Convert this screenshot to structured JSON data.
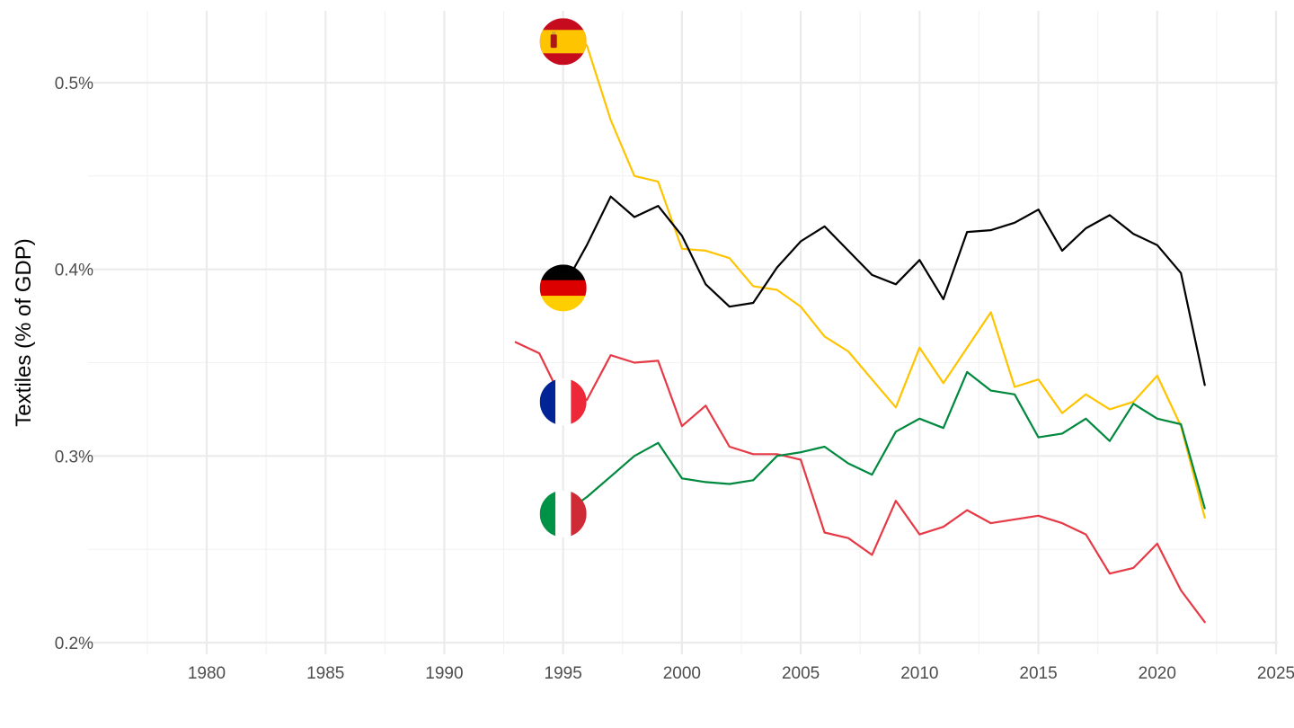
{
  "chart_data": {
    "type": "line",
    "title": "",
    "xlabel": "",
    "ylabel": "Textiles (% of GDP)",
    "xlim": [
      1975,
      2025
    ],
    "ylim": [
      0.2,
      0.53
    ],
    "x_ticks": [
      1980,
      1985,
      1990,
      1995,
      2000,
      2005,
      2010,
      2015,
      2020,
      2025
    ],
    "y_ticks": [
      0.2,
      0.3,
      0.4,
      0.5
    ],
    "y_tick_labels": [
      "0.2%",
      "0.3%",
      "0.4%",
      "0.5%"
    ],
    "grid": true,
    "legend": "flag markers at 1995",
    "series": [
      {
        "key": "spain",
        "flag": "spain-flag-icon",
        "color": "#FFC400",
        "x": [
          1995,
          1996,
          1997,
          1998,
          1999,
          2000,
          2001,
          2002,
          2003,
          2004,
          2005,
          2006,
          2007,
          2008,
          2009,
          2010,
          2011,
          2012,
          2013,
          2014,
          2015,
          2016,
          2017,
          2018,
          2019,
          2020,
          2021,
          2022
        ],
        "y": [
          0.522,
          0.52,
          0.48,
          0.45,
          0.447,
          0.411,
          0.41,
          0.406,
          0.391,
          0.389,
          0.38,
          0.364,
          0.356,
          0.341,
          0.326,
          0.358,
          0.339,
          0.358,
          0.377,
          0.337,
          0.341,
          0.323,
          0.333,
          0.325,
          0.329,
          0.343,
          0.316,
          0.267
        ]
      },
      {
        "key": "germany",
        "flag": "germany-flag-icon",
        "color": "#000000",
        "x": [
          1995,
          1996,
          1997,
          1998,
          1999,
          2000,
          2001,
          2002,
          2003,
          2004,
          2005,
          2006,
          2007,
          2008,
          2009,
          2010,
          2011,
          2012,
          2013,
          2014,
          2015,
          2016,
          2017,
          2018,
          2019,
          2020,
          2021,
          2022
        ],
        "y": [
          0.39,
          0.413,
          0.439,
          0.428,
          0.434,
          0.418,
          0.392,
          0.38,
          0.382,
          0.401,
          0.415,
          0.423,
          0.41,
          0.397,
          0.392,
          0.405,
          0.384,
          0.42,
          0.421,
          0.425,
          0.432,
          0.41,
          0.422,
          0.429,
          0.419,
          0.413,
          0.398,
          0.338
        ]
      },
      {
        "key": "france",
        "flag": "france-flag-icon",
        "color": "#E63946",
        "x": [
          1993,
          1994,
          1995,
          1996,
          1997,
          1998,
          1999,
          2000,
          2001,
          2002,
          2003,
          2004,
          2005,
          2006,
          2007,
          2008,
          2009,
          2010,
          2011,
          2012,
          2013,
          2014,
          2015,
          2016,
          2017,
          2018,
          2019,
          2020,
          2021,
          2022
        ],
        "y": [
          0.361,
          0.355,
          0.329,
          0.33,
          0.354,
          0.35,
          0.351,
          0.316,
          0.327,
          0.305,
          0.301,
          0.301,
          0.298,
          0.259,
          0.256,
          0.247,
          0.276,
          0.258,
          0.262,
          0.271,
          0.264,
          0.266,
          0.268,
          0.264,
          0.258,
          0.237,
          0.24,
          0.253,
          0.228,
          0.211
        ]
      },
      {
        "key": "italy",
        "flag": "italy-flag-icon",
        "color": "#00893E",
        "x": [
          1995,
          1996,
          1997,
          1998,
          1999,
          2000,
          2001,
          2002,
          2003,
          2004,
          2005,
          2006,
          2007,
          2008,
          2009,
          2010,
          2011,
          2012,
          2013,
          2014,
          2015,
          2016,
          2017,
          2018,
          2019,
          2020,
          2021,
          2022
        ],
        "y": [
          0.269,
          0.278,
          0.289,
          0.3,
          0.307,
          0.288,
          0.286,
          0.285,
          0.287,
          0.3,
          0.302,
          0.305,
          0.296,
          0.29,
          0.313,
          0.32,
          0.315,
          0.345,
          0.335,
          0.333,
          0.31,
          0.312,
          0.32,
          0.308,
          0.328,
          0.32,
          0.317,
          0.272
        ]
      }
    ]
  }
}
